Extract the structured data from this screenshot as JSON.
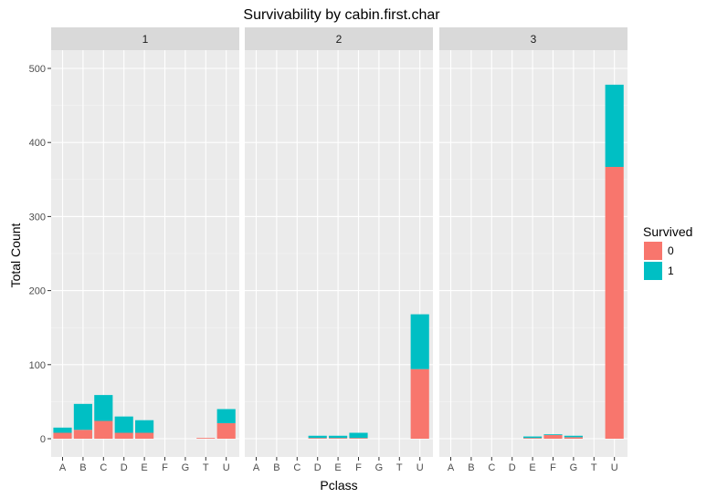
{
  "chart_data": {
    "type": "bar",
    "stacked": true,
    "faceted": true,
    "title": "Survivability by cabin.first.char",
    "xlabel": "Pclass",
    "ylabel": "Total Count",
    "ylim": [
      0,
      525
    ],
    "yticks": [
      0,
      100,
      200,
      300,
      400,
      500
    ],
    "categories": [
      "A",
      "B",
      "C",
      "D",
      "E",
      "F",
      "G",
      "T",
      "U"
    ],
    "legend": {
      "title": "Survived",
      "position": "right",
      "entries": [
        {
          "label": "0",
          "color": "#f8766d"
        },
        {
          "label": "1",
          "color": "#00bfc4"
        }
      ]
    },
    "series": [
      {
        "name": "0",
        "color": "#f8766d"
      },
      {
        "name": "1",
        "color": "#00bfc4"
      }
    ],
    "facets": [
      {
        "label": "1",
        "values": {
          "0": [
            8,
            12,
            24,
            8,
            8,
            0,
            0,
            1,
            21
          ],
          "1": [
            7,
            35,
            35,
            22,
            17,
            0,
            0,
            0,
            19
          ]
        }
      },
      {
        "label": "2",
        "values": {
          "0": [
            0,
            0,
            0,
            1,
            1,
            1,
            0,
            0,
            94
          ],
          "1": [
            0,
            0,
            0,
            3,
            3,
            7,
            0,
            0,
            74
          ]
        }
      },
      {
        "label": "3",
        "values": {
          "0": [
            0,
            0,
            0,
            0,
            1,
            5,
            2,
            0,
            367
          ],
          "1": [
            0,
            0,
            0,
            0,
            2,
            1,
            2,
            0,
            111
          ]
        }
      }
    ],
    "grid": true
  }
}
